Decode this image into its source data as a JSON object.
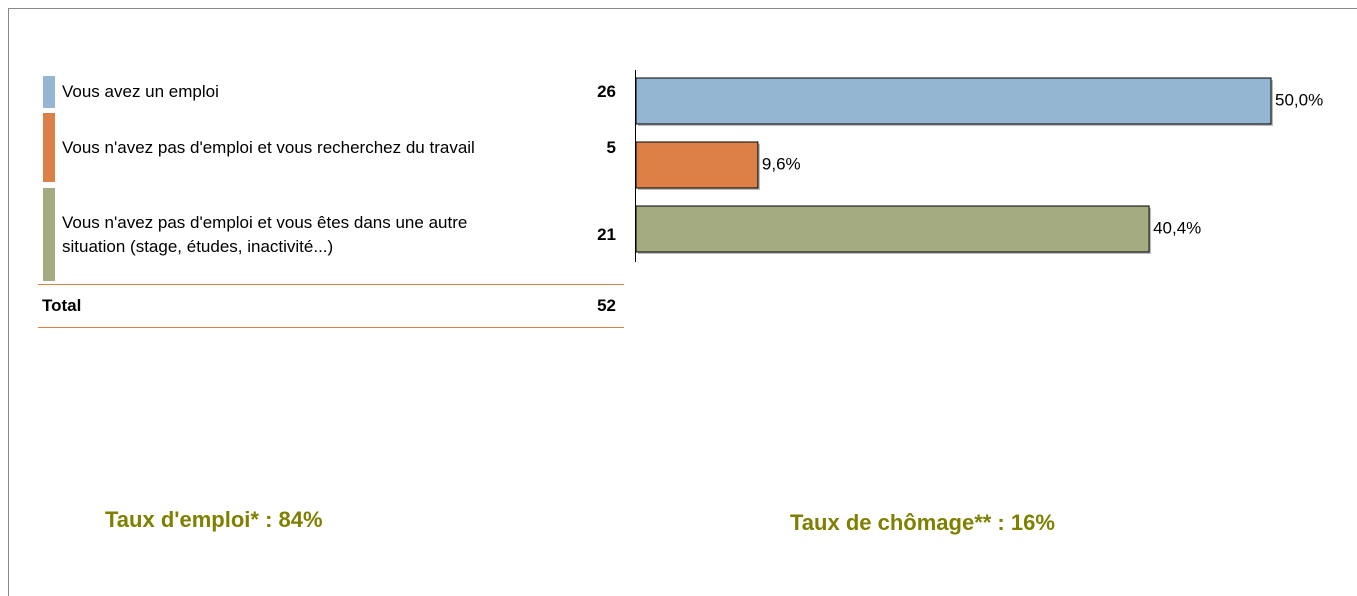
{
  "chart_data": {
    "type": "bar",
    "orientation": "horizontal",
    "categories": [
      "Vous avez un emploi",
      "Vous n'avez pas d'emploi et vous recherchez du travail",
      "Vous n'avez pas d'emploi et vous êtes dans une autre situation (stage, études, inactivité...)"
    ],
    "counts": [
      26,
      5,
      21
    ],
    "values": [
      50.0,
      9.6,
      40.4
    ],
    "value_labels": [
      "50,0%",
      "9,6%",
      "40,4%"
    ],
    "colors": [
      "#94b6d2",
      "#dd8047",
      "#a5ab81"
    ],
    "total_label": "Total",
    "total": 52
  },
  "footer": {
    "employment_rate": "Taux d'emploi* : 84%",
    "unemployment_rate": "Taux de chômage** : 16%"
  }
}
